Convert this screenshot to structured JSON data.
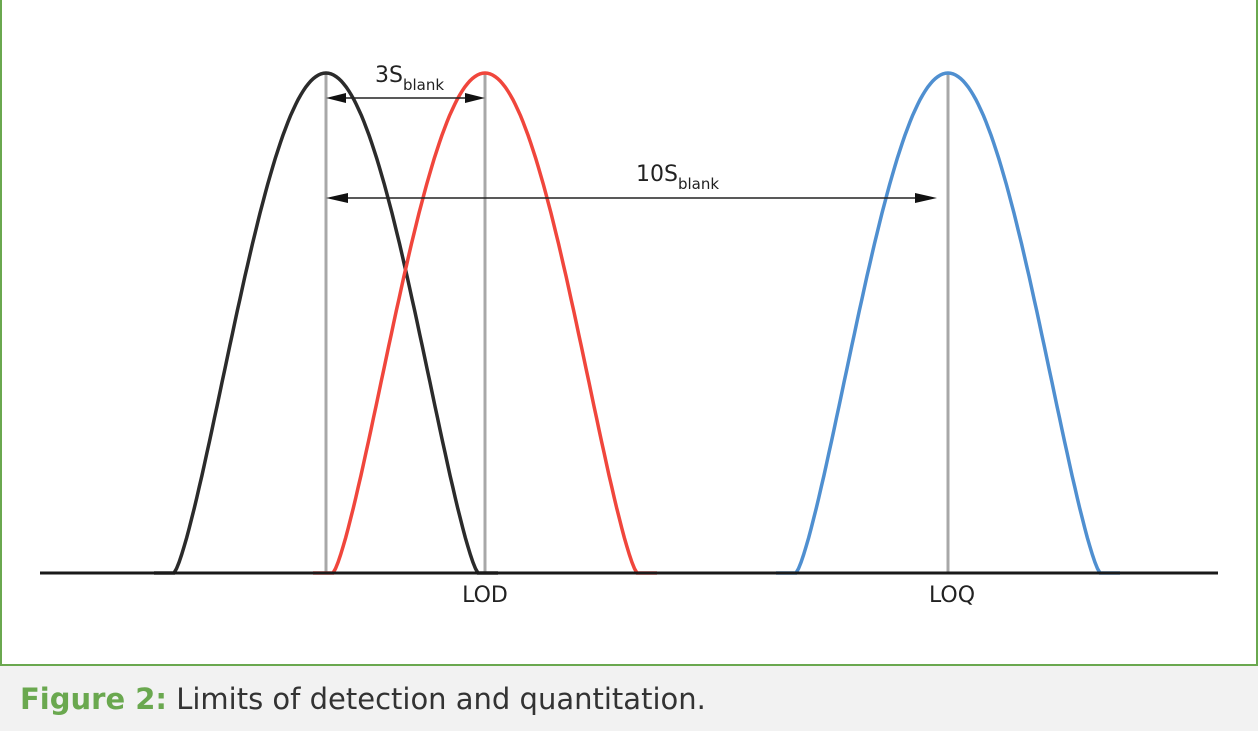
{
  "diagram": {
    "span_3s": {
      "main": "3S",
      "sub": "blank"
    },
    "span_10s": {
      "main": "10S",
      "sub": "blank"
    },
    "lod_label": "LOD",
    "loq_label": "LOQ",
    "curves": [
      {
        "name": "blank",
        "color": "#2b2b2b"
      },
      {
        "name": "lod",
        "color": "#f0463c"
      },
      {
        "name": "loq",
        "color": "#4f8fd0"
      }
    ]
  },
  "caption": {
    "label": "Figure 2:",
    "text": " Limits of detection and quantitation."
  }
}
